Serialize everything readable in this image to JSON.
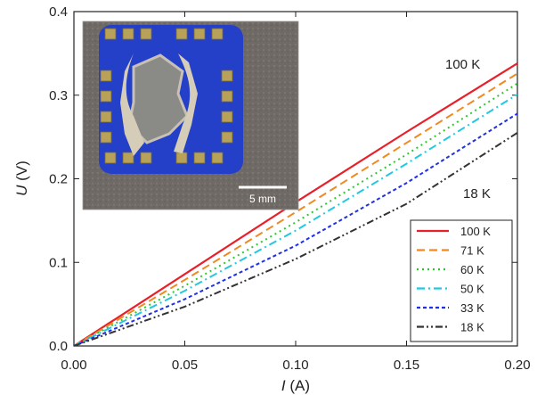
{
  "chart_data": {
    "type": "line",
    "xlabel": "I (A)",
    "ylabel": "U (V)",
    "xlabel_symbol": "I",
    "xlabel_unit": "(A)",
    "ylabel_symbol": "U",
    "ylabel_unit": "(V)",
    "xlim": [
      0,
      0.2
    ],
    "ylim": [
      0,
      0.4
    ],
    "x_ticks": [
      "0.00",
      "0.05",
      "0.10",
      "0.15",
      "0.20"
    ],
    "y_ticks": [
      "0.0",
      "0.1",
      "0.2",
      "0.3",
      "0.4"
    ],
    "grid": false,
    "legend_position": "bottom-right",
    "annotations": [
      {
        "text": "100 K",
        "near_series": "100 K",
        "position": "upper end"
      },
      {
        "text": "18 K",
        "near_series": "18 K",
        "position": "upper end"
      }
    ],
    "inset": {
      "kind": "photograph",
      "scale_bar_label": "5 mm",
      "position": "top-left"
    },
    "series": [
      {
        "name": "100 K",
        "color": "#e8202a",
        "style": "solid",
        "x": [
          0,
          0.05,
          0.1,
          0.15,
          0.2
        ],
        "y": [
          0,
          0.086,
          0.172,
          0.256,
          0.338
        ]
      },
      {
        "name": "71 K",
        "color": "#f08a20",
        "style": "dashed",
        "x": [
          0,
          0.05,
          0.1,
          0.15,
          0.2
        ],
        "y": [
          0,
          0.079,
          0.16,
          0.243,
          0.326
        ]
      },
      {
        "name": "60 K",
        "color": "#2ec82e",
        "style": "dotted",
        "x": [
          0,
          0.05,
          0.1,
          0.15,
          0.2
        ],
        "y": [
          0,
          0.072,
          0.148,
          0.229,
          0.314
        ]
      },
      {
        "name": "50 K",
        "color": "#22c8e0",
        "style": "dashdot",
        "x": [
          0,
          0.05,
          0.1,
          0.15,
          0.2
        ],
        "y": [
          0,
          0.066,
          0.138,
          0.218,
          0.301
        ]
      },
      {
        "name": "33 K",
        "color": "#2030e8",
        "style": "shortdash",
        "x": [
          0,
          0.05,
          0.1,
          0.15,
          0.2
        ],
        "y": [
          0,
          0.056,
          0.12,
          0.195,
          0.278
        ]
      },
      {
        "name": "18 K",
        "color": "#333333",
        "style": "dashdotdot",
        "x": [
          0,
          0.05,
          0.1,
          0.15,
          0.2
        ],
        "y": [
          0,
          0.047,
          0.104,
          0.17,
          0.255
        ]
      }
    ]
  }
}
